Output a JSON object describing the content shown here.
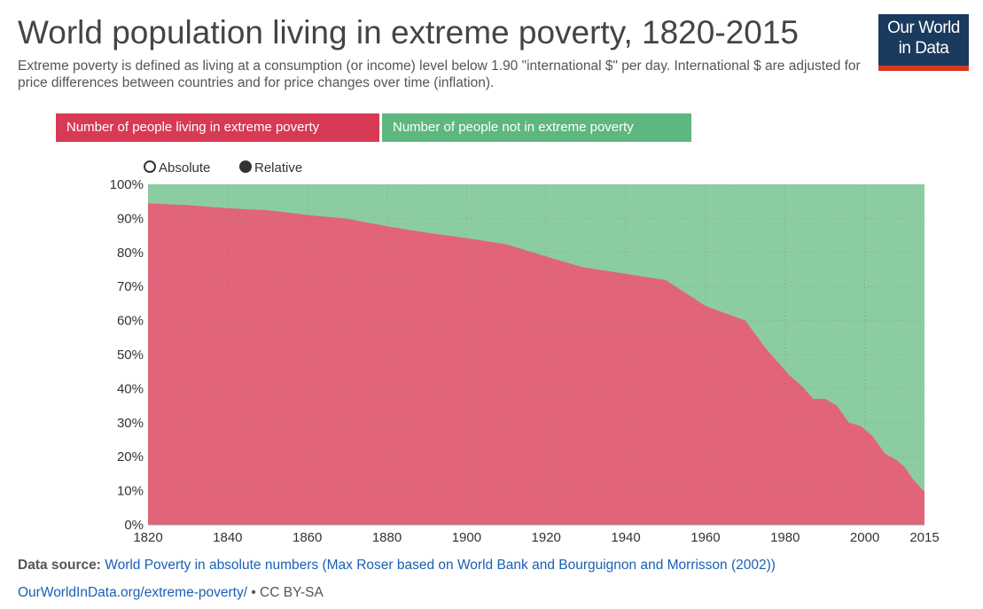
{
  "header": {
    "title": "World population living in extreme poverty, 1820-2015",
    "subtitle": "Extreme poverty is defined as living at a consumption (or income) level below 1.90 \"international $\" per day. International $ are adjusted for price differences between countries and for price changes over time (inflation)."
  },
  "logo": {
    "line1": "Our World",
    "line2": "in Data"
  },
  "legend": {
    "poverty_label": "Number of people living in extreme poverty",
    "not_poverty_label": "Number of people not in extreme poverty"
  },
  "toggle": {
    "absolute": "Absolute",
    "relative": "Relative",
    "selected": "Relative"
  },
  "colors": {
    "poverty": "#e2647a",
    "not_poverty": "#8ccca3",
    "legend_poverty": "#d73a55",
    "legend_not_poverty": "#5db77e"
  },
  "chart_data": {
    "type": "area",
    "stacked": true,
    "title": "World population living in extreme poverty, 1820-2015",
    "x_ticks": [
      1820,
      1840,
      1860,
      1880,
      1900,
      1920,
      1940,
      1960,
      1980,
      2000,
      2015
    ],
    "y_ticks": [
      "0%",
      "10%",
      "20%",
      "30%",
      "40%",
      "50%",
      "60%",
      "70%",
      "80%",
      "90%",
      "100%"
    ],
    "xlim": [
      1820,
      2015
    ],
    "ylim": [
      0,
      100
    ],
    "grid": true,
    "series": [
      {
        "name": "Number of people living in extreme poverty",
        "x": [
          1820,
          1830,
          1840,
          1850,
          1860,
          1870,
          1880,
          1890,
          1900,
          1910,
          1920,
          1929,
          1940,
          1950,
          1960,
          1970,
          1975,
          1981,
          1984,
          1987,
          1990,
          1993,
          1996,
          1999,
          2002,
          2005,
          2008,
          2010,
          2012,
          2015
        ],
        "values": [
          94.4,
          93.9,
          93.0,
          92.4,
          91.0,
          89.9,
          87.7,
          85.8,
          84.2,
          82.4,
          78.8,
          75.7,
          73.7,
          71.9,
          64.3,
          60.0,
          52.0,
          44.0,
          41.0,
          37.0,
          37.0,
          35.0,
          30.0,
          29.0,
          26.0,
          21.0,
          19.0,
          17.0,
          13.5,
          9.6
        ]
      },
      {
        "name": "Number of people not in extreme poverty",
        "values_note": "remainder to 100%"
      }
    ]
  },
  "footer": {
    "source_label": "Data source:",
    "source_text": "World Poverty in absolute numbers (Max Roser based on World Bank and Bourguignon and Morrisson (2002))",
    "url_text": "OurWorldInData.org/extreme-poverty/",
    "license": "• CC BY-SA"
  }
}
